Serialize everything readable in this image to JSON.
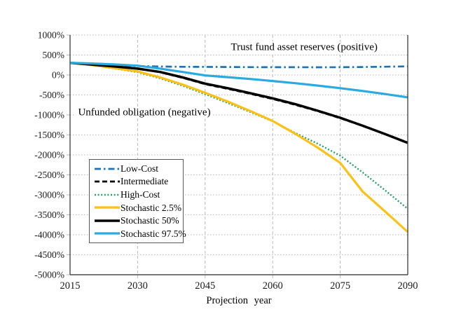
{
  "figure": {
    "background": "#ffffff",
    "axis_color": "#4a4a4a",
    "grid_color": "#b8b8b8"
  },
  "chart_data": {
    "type": "line",
    "title": "",
    "xlabel": "Projection year",
    "ylabel": "",
    "x_range": [
      2015,
      2090
    ],
    "ylim": [
      -5000,
      1000
    ],
    "xticks": [
      2015,
      2030,
      2045,
      2060,
      2075,
      2090
    ],
    "yticks": [
      1000,
      500,
      0,
      -500,
      -1000,
      -1500,
      -2000,
      -2500,
      -3000,
      -3500,
      -4000,
      -4500,
      -5000
    ],
    "ytick_suffix": "%",
    "grid": true,
    "legend_position": "inside lower-left",
    "x": [
      2015,
      2020,
      2025,
      2030,
      2035,
      2040,
      2045,
      2050,
      2055,
      2060,
      2065,
      2070,
      2075,
      2080,
      2085,
      2090
    ],
    "series": [
      {
        "name": "Low-Cost",
        "color": "#1e73b5",
        "style": "dash-dot",
        "values": [
          305,
          272,
          245,
          225,
          212,
          206,
          204,
          200,
          197,
          195,
          194,
          193,
          195,
          200,
          207,
          215
        ]
      },
      {
        "name": "Intermediate",
        "color": "#000000",
        "style": "dashed",
        "values": [
          305,
          258,
          210,
          155,
          70,
          -70,
          -230,
          -345,
          -470,
          -600,
          -745,
          -905,
          -1080,
          -1275,
          -1480,
          -1690
        ]
      },
      {
        "name": "High-Cost",
        "color": "#27a169",
        "style": "dotted",
        "values": [
          305,
          240,
          160,
          70,
          -85,
          -270,
          -480,
          -700,
          -925,
          -1160,
          -1450,
          -1720,
          -2020,
          -2440,
          -2890,
          -3350
        ]
      },
      {
        "name": "Stochastic 2.5%",
        "color": "#fdc013",
        "style": "solid",
        "values": [
          305,
          245,
          170,
          90,
          -60,
          -240,
          -445,
          -665,
          -900,
          -1150,
          -1470,
          -1820,
          -2200,
          -2920,
          -3420,
          -3930
        ]
      },
      {
        "name": "Stochastic 50%",
        "color": "#000000",
        "style": "solid",
        "values": [
          305,
          260,
          212,
          160,
          75,
          -60,
          -215,
          -330,
          -455,
          -585,
          -730,
          -895,
          -1070,
          -1270,
          -1480,
          -1700
        ]
      },
      {
        "name": "Stochastic 97.5%",
        "color": "#2baae2",
        "style": "solid",
        "values": [
          305,
          287,
          263,
          233,
          160,
          75,
          -10,
          -55,
          -100,
          -150,
          -205,
          -265,
          -330,
          -400,
          -478,
          -560
        ]
      }
    ],
    "annotations": [
      {
        "text": "Trust fund asset reserves (positive)",
        "x": 2067,
        "y": 690
      },
      {
        "text": "Unfunded obligation (negative)",
        "x": 2031.5,
        "y": -940
      }
    ]
  }
}
